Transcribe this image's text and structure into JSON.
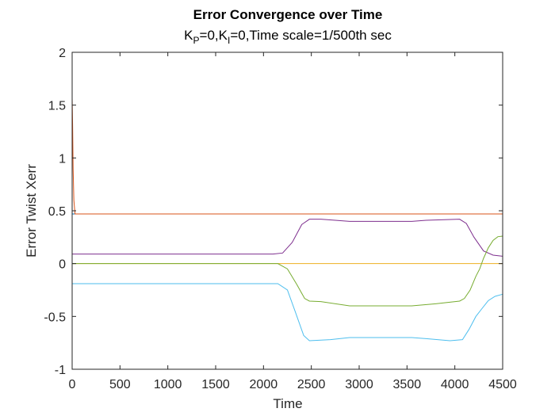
{
  "chart_data": {
    "type": "line",
    "title": "Error Convergence over Time",
    "subtitle": {
      "k_p_base": "K",
      "k_p_sub": "P",
      "k_p_rest": "=0,K",
      "k_i_sub": "I",
      "rest": "=0,Time scale=1/500th sec"
    },
    "xlabel": "Time",
    "ylabel": "Error Twist Xerr",
    "xlim": [
      0,
      4500
    ],
    "ylim": [
      -1,
      2
    ],
    "xticks": [
      0,
      500,
      1000,
      1500,
      2000,
      2500,
      3000,
      3500,
      4000,
      4500
    ],
    "yticks": [
      2,
      1.5,
      1,
      0.5,
      0,
      -0.5,
      -1
    ],
    "ytick_labels": [
      "2",
      "1.5",
      "1",
      "0.5",
      "0",
      "-0.5",
      "-1"
    ],
    "grid": false,
    "series": [
      {
        "color": "#0072BD",
        "points": [
          [
            0,
            0.47
          ],
          [
            10,
            0.47
          ],
          [
            4500,
            0.47
          ]
        ]
      },
      {
        "color": "#D95319",
        "points": [
          [
            0,
            1.57
          ],
          [
            5,
            1.3
          ],
          [
            10,
            0.9
          ],
          [
            18,
            0.6
          ],
          [
            30,
            0.47
          ],
          [
            4500,
            0.47
          ]
        ]
      },
      {
        "color": "#EDB120",
        "points": [
          [
            0,
            0.0
          ],
          [
            4500,
            0.0
          ]
        ]
      },
      {
        "color": "#7E2F8E",
        "points": [
          [
            0,
            0.09
          ],
          [
            2100,
            0.09
          ],
          [
            2200,
            0.1
          ],
          [
            2300,
            0.2
          ],
          [
            2400,
            0.37
          ],
          [
            2480,
            0.42
          ],
          [
            2600,
            0.42
          ],
          [
            2900,
            0.4
          ],
          [
            3550,
            0.4
          ],
          [
            3700,
            0.41
          ],
          [
            4050,
            0.42
          ],
          [
            4120,
            0.38
          ],
          [
            4200,
            0.25
          ],
          [
            4300,
            0.12
          ],
          [
            4400,
            0.08
          ],
          [
            4500,
            0.07
          ]
        ]
      },
      {
        "color": "#77AC30",
        "points": [
          [
            0,
            0.0
          ],
          [
            2150,
            0.0
          ],
          [
            2250,
            -0.05
          ],
          [
            2350,
            -0.2
          ],
          [
            2430,
            -0.33
          ],
          [
            2480,
            -0.355
          ],
          [
            2600,
            -0.36
          ],
          [
            2900,
            -0.4
          ],
          [
            3550,
            -0.4
          ],
          [
            3800,
            -0.38
          ],
          [
            4050,
            -0.355
          ],
          [
            4100,
            -0.33
          ],
          [
            4160,
            -0.25
          ],
          [
            4220,
            -0.12
          ],
          [
            4260,
            -0.05
          ],
          [
            4300,
            0.05
          ],
          [
            4350,
            0.15
          ],
          [
            4400,
            0.22
          ],
          [
            4450,
            0.255
          ],
          [
            4500,
            0.26
          ]
        ]
      },
      {
        "color": "#4DBEEE",
        "points": [
          [
            0,
            -0.19
          ],
          [
            2150,
            -0.19
          ],
          [
            2250,
            -0.25
          ],
          [
            2330,
            -0.45
          ],
          [
            2420,
            -0.68
          ],
          [
            2480,
            -0.73
          ],
          [
            2700,
            -0.72
          ],
          [
            2900,
            -0.7
          ],
          [
            3550,
            -0.7
          ],
          [
            3700,
            -0.71
          ],
          [
            3950,
            -0.73
          ],
          [
            4080,
            -0.72
          ],
          [
            4150,
            -0.62
          ],
          [
            4220,
            -0.5
          ],
          [
            4280,
            -0.43
          ],
          [
            4350,
            -0.35
          ],
          [
            4420,
            -0.31
          ],
          [
            4500,
            -0.29
          ]
        ]
      }
    ]
  }
}
